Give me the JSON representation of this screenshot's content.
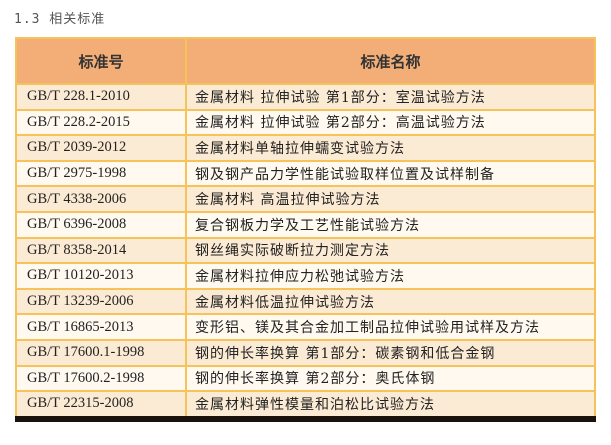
{
  "section_title": "1.3 相关标准",
  "table": {
    "headers": [
      "标准号",
      "标准名称"
    ],
    "rows": [
      [
        "GB/T 228.1-2010",
        "金属材料 拉伸试验 第1部分：室温试验方法"
      ],
      [
        "GB/T 228.2-2015",
        "金属材料 拉伸试验 第2部分：高温试验方法"
      ],
      [
        "GB/T 2039-2012",
        "金属材料单轴拉伸蠕变试验方法"
      ],
      [
        "GB/T 2975-1998",
        "钢及钢产品力学性能试验取样位置及试样制备"
      ],
      [
        "GB/T 4338-2006",
        "金属材料 高温拉伸试验方法"
      ],
      [
        "GB/T 6396-2008",
        "复合钢板力学及工艺性能试验方法"
      ],
      [
        "GB/T 8358-2014",
        "钢丝绳实际破断拉力测定方法"
      ],
      [
        "GB/T 10120-2013",
        "金属材料拉伸应力松弛试验方法"
      ],
      [
        "GB/T 13239-2006",
        "金属材料低温拉伸试验方法"
      ],
      [
        "GB/T 16865-2013",
        "变形铝、镁及其合金加工制品拉伸试验用试样及方法"
      ],
      [
        "GB/T 17600.1-1998",
        "钢的伸长率换算 第1部分：碳素钢和低合金钢"
      ],
      [
        "GB/T 17600.2-1998",
        "钢的伸长率换算 第2部分：奥氏体钢"
      ],
      [
        "GB/T 22315-2008",
        "金属材料弹性模量和泊松比试验方法"
      ]
    ]
  },
  "colors": {
    "header_bg": "#f3ae78",
    "border": "#f6c25a",
    "row_odd": "#fcebd4",
    "row_even": "#fff9f0"
  }
}
